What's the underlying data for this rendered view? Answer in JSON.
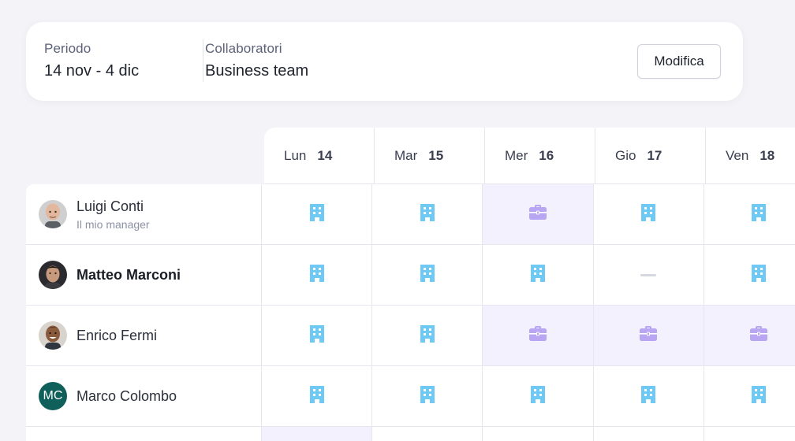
{
  "filters": {
    "period_label": "Periodo",
    "period_value": "14 nov - 4 dic",
    "team_label": "Collaboratori",
    "team_value": "Business team",
    "edit_label": "Modifica"
  },
  "days": [
    {
      "name": "Lun",
      "num": "14"
    },
    {
      "name": "Mar",
      "num": "15"
    },
    {
      "name": "Mer",
      "num": "16"
    },
    {
      "name": "Gio",
      "num": "17"
    },
    {
      "name": "Ven",
      "num": "18"
    }
  ],
  "people": [
    {
      "name": "Luigi Conti",
      "subtitle": "Il mio manager",
      "avatar": "photo-bald",
      "bold": false,
      "days": [
        "office",
        "office",
        "remote",
        "office",
        "office"
      ]
    },
    {
      "name": "Matteo Marconi",
      "subtitle": "",
      "avatar": "photo-dark",
      "bold": true,
      "days": [
        "office",
        "office",
        "office",
        "none",
        "office"
      ]
    },
    {
      "name": "Enrico Fermi",
      "subtitle": "",
      "avatar": "photo-smile",
      "bold": false,
      "days": [
        "office",
        "office",
        "remote",
        "remote",
        "remote"
      ]
    },
    {
      "name": "Marco Colombo",
      "subtitle": "",
      "avatar": "initials",
      "initials": "MC",
      "bold": false,
      "days": [
        "office",
        "office",
        "office",
        "office",
        "office"
      ]
    }
  ],
  "colors": {
    "office_icon": "#6ec9f5",
    "remote_icon": "#b8a6f3",
    "remote_bg": "#f4f1fe",
    "avatar_initials_bg": "#0f5f5a"
  },
  "icons": {
    "office": "building-icon",
    "remote": "briefcase-icon",
    "none": "dash-icon"
  }
}
